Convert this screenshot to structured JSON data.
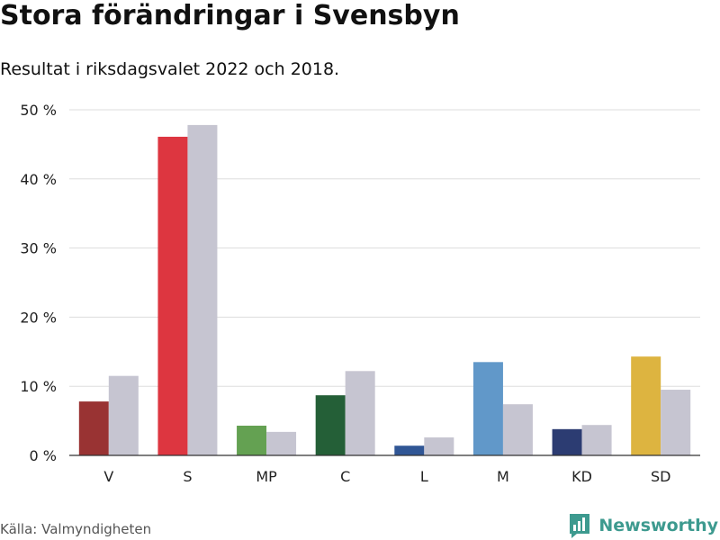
{
  "title": "Stora förändringar i Svensbyn",
  "subtitle": "Resultat i riksdagsvalet 2022 och 2018.",
  "source": "Källa: Valmyndigheten",
  "brand": {
    "name": "Newsworthy",
    "color": "#3d9a8f"
  },
  "chart_data": {
    "type": "bar",
    "title": "Stora förändringar i Svensbyn",
    "subtitle": "Resultat i riksdagsvalet 2022 och 2018.",
    "xlabel": "",
    "ylabel": "",
    "ylim": [
      0,
      50
    ],
    "yticks": [
      0,
      10,
      20,
      30,
      40,
      50
    ],
    "ytick_labels": [
      "0 %",
      "10 %",
      "20 %",
      "30 %",
      "40 %",
      "50 %"
    ],
    "grid": true,
    "categories": [
      "V",
      "S",
      "MP",
      "C",
      "L",
      "M",
      "KD",
      "SD"
    ],
    "series": [
      {
        "name": "2022",
        "values": [
          7.8,
          46.1,
          4.3,
          8.7,
          1.4,
          13.5,
          3.8,
          14.3
        ],
        "colors": [
          "#993333",
          "#dd3640",
          "#64a152",
          "#245f37",
          "#305695",
          "#6198c9",
          "#2c3c72",
          "#ddb440"
        ]
      },
      {
        "name": "2018",
        "values": [
          11.5,
          47.8,
          3.4,
          12.2,
          2.6,
          7.4,
          4.4,
          9.5
        ],
        "color": "#c6c5d1"
      }
    ]
  }
}
